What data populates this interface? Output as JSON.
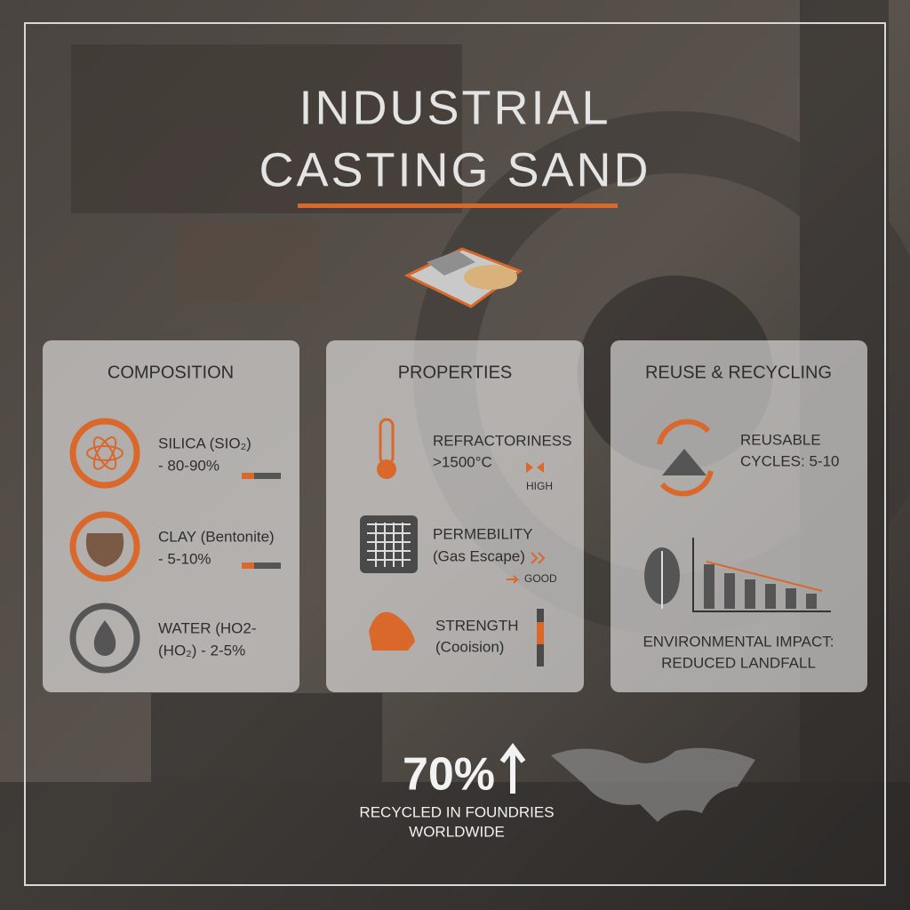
{
  "header": {
    "title_lines": [
      "INDUSTRIAL",
      "CASTING SAND"
    ]
  },
  "panels": [
    {
      "heading": "COMPOSITION",
      "items": [
        {
          "lines": [
            "SILICA (SIO₂)",
            "- 80-90%"
          ]
        },
        {
          "lines": [
            "CLAY (Bentonite)",
            "- 5-10%"
          ]
        },
        {
          "lines": [
            "WATER (HO2-",
            "(HO₂) - 2-5%"
          ]
        }
      ]
    },
    {
      "heading": "PROPERTIES",
      "items": [
        {
          "lines": [
            "REFRACTORINESS",
            ">1500°C"
          ],
          "rating": "HIGH"
        },
        {
          "lines": [
            "PERMEBILITY",
            "(Gas Escape)"
          ],
          "rating": "GOOD"
        },
        {
          "lines": [
            "STRENGTH",
            "(Cooision)"
          ]
        }
      ]
    },
    {
      "heading": "REUSE & RECYCLING",
      "items": [
        {
          "lines": [
            "REUSABLE",
            "CYCLES: 5-10"
          ]
        },
        {
          "lines": [
            "ENVIRONMENTAL IMPACT:",
            "REDUCED LANDFALL"
          ]
        }
      ]
    }
  ],
  "footer": {
    "stat": "70%",
    "caption_lines": [
      "RECYCLED IN FOUNDRIES",
      "WORLDWIDE"
    ]
  }
}
